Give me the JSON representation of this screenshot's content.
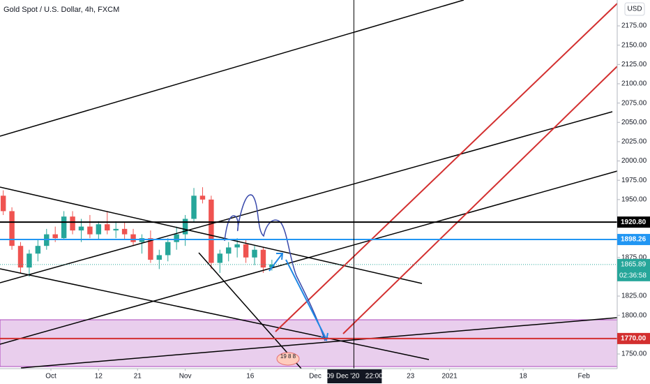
{
  "chart_data": {
    "type": "candlestick",
    "title": "Gold Spot / U.S. Dollar, 4h, FXCM",
    "currency": "USD",
    "up_color": "#26a69a",
    "down_color": "#ef5350",
    "x": [
      -3,
      -1,
      1,
      3,
      5,
      7,
      9,
      11,
      13,
      15,
      17,
      19,
      21,
      23,
      25,
      27,
      29,
      31,
      33,
      35,
      37,
      39,
      41,
      43,
      45,
      47,
      49,
      51,
      53,
      55,
      57,
      59
    ],
    "open": [
      1955,
      1935,
      1890,
      1862,
      1880,
      1890,
      1905,
      1900,
      1928,
      1910,
      1915,
      1905,
      1918,
      1910,
      1912,
      1905,
      1895,
      1900,
      1872,
      1878,
      1895,
      1905,
      1925,
      1955,
      1950,
      1868,
      1880,
      1888,
      1892,
      1875,
      1885,
      1862
    ],
    "high": [
      1962,
      1940,
      1895,
      1885,
      1898,
      1912,
      1915,
      1935,
      1935,
      1925,
      1930,
      1922,
      1935,
      1922,
      1920,
      1912,
      1905,
      1910,
      1885,
      1900,
      1915,
      1930,
      1965,
      1966,
      1955,
      1885,
      1895,
      1900,
      1898,
      1890,
      1888,
      1872
    ],
    "low": [
      1930,
      1885,
      1855,
      1850,
      1870,
      1885,
      1895,
      1898,
      1905,
      1895,
      1900,
      1898,
      1905,
      1900,
      1898,
      1890,
      1880,
      1868,
      1860,
      1870,
      1885,
      1890,
      1920,
      1945,
      1860,
      1855,
      1870,
      1875,
      1868,
      1865,
      1855,
      1858
    ],
    "close": [
      1935,
      1890,
      1862,
      1880,
      1890,
      1905,
      1900,
      1928,
      1910,
      1915,
      1905,
      1918,
      1910,
      1912,
      1905,
      1895,
      1900,
      1872,
      1878,
      1895,
      1905,
      1925,
      1955,
      1950,
      1868,
      1880,
      1888,
      1892,
      1875,
      1885,
      1862,
      1866
    ],
    "xlim": [
      -3.75,
      138.7
    ],
    "ylim": [
      1731,
      2208.5
    ],
    "xticks": [
      {
        "value": 8,
        "label": "Oct"
      },
      {
        "value": 19,
        "label": "12"
      },
      {
        "value": 28,
        "label": "21"
      },
      {
        "value": 39,
        "label": "Nov"
      },
      {
        "value": 54,
        "label": "16"
      },
      {
        "value": 69,
        "label": "Dec"
      },
      {
        "value": 91,
        "label": "23"
      },
      {
        "value": 100,
        "label": "2021"
      },
      {
        "value": 117,
        "label": "18"
      },
      {
        "value": 131,
        "label": "Feb"
      }
    ],
    "yticks": [
      {
        "value": 1750,
        "label": "1750.00"
      },
      {
        "value": 1800,
        "label": "1800.00"
      },
      {
        "value": 1825,
        "label": "1825.00"
      },
      {
        "value": 1875,
        "label": "1875.00"
      },
      {
        "value": 1950,
        "label": "1950.00"
      },
      {
        "value": 1975,
        "label": "1975.00"
      },
      {
        "value": 2000,
        "label": "2000.00"
      },
      {
        "value": 2025,
        "label": "2025.00"
      },
      {
        "value": 2050,
        "label": "2050.00"
      },
      {
        "value": 2075,
        "label": "2075.00"
      },
      {
        "value": 2100,
        "label": "2100.00"
      },
      {
        "value": 2125,
        "label": "2125.00"
      },
      {
        "value": 2150,
        "label": "2150.00"
      },
      {
        "value": 2175,
        "label": "2175.00"
      }
    ],
    "price_lines": [
      {
        "value": 1920.8,
        "label": "1920.80",
        "color": "#000000"
      },
      {
        "value": 1898.26,
        "label": "1898.26",
        "color": "#2196f3"
      },
      {
        "value": 1770,
        "label": "1770.00",
        "color": "#d32f2f"
      }
    ],
    "last_price": {
      "value": 1865.89,
      "label": "1865.89",
      "countdown": "02:36:58",
      "color": "#26a69a"
    },
    "crosshair": {
      "x": 77.92,
      "label": "09 Dec '20   22:00"
    },
    "badge": "19 8 8"
  }
}
